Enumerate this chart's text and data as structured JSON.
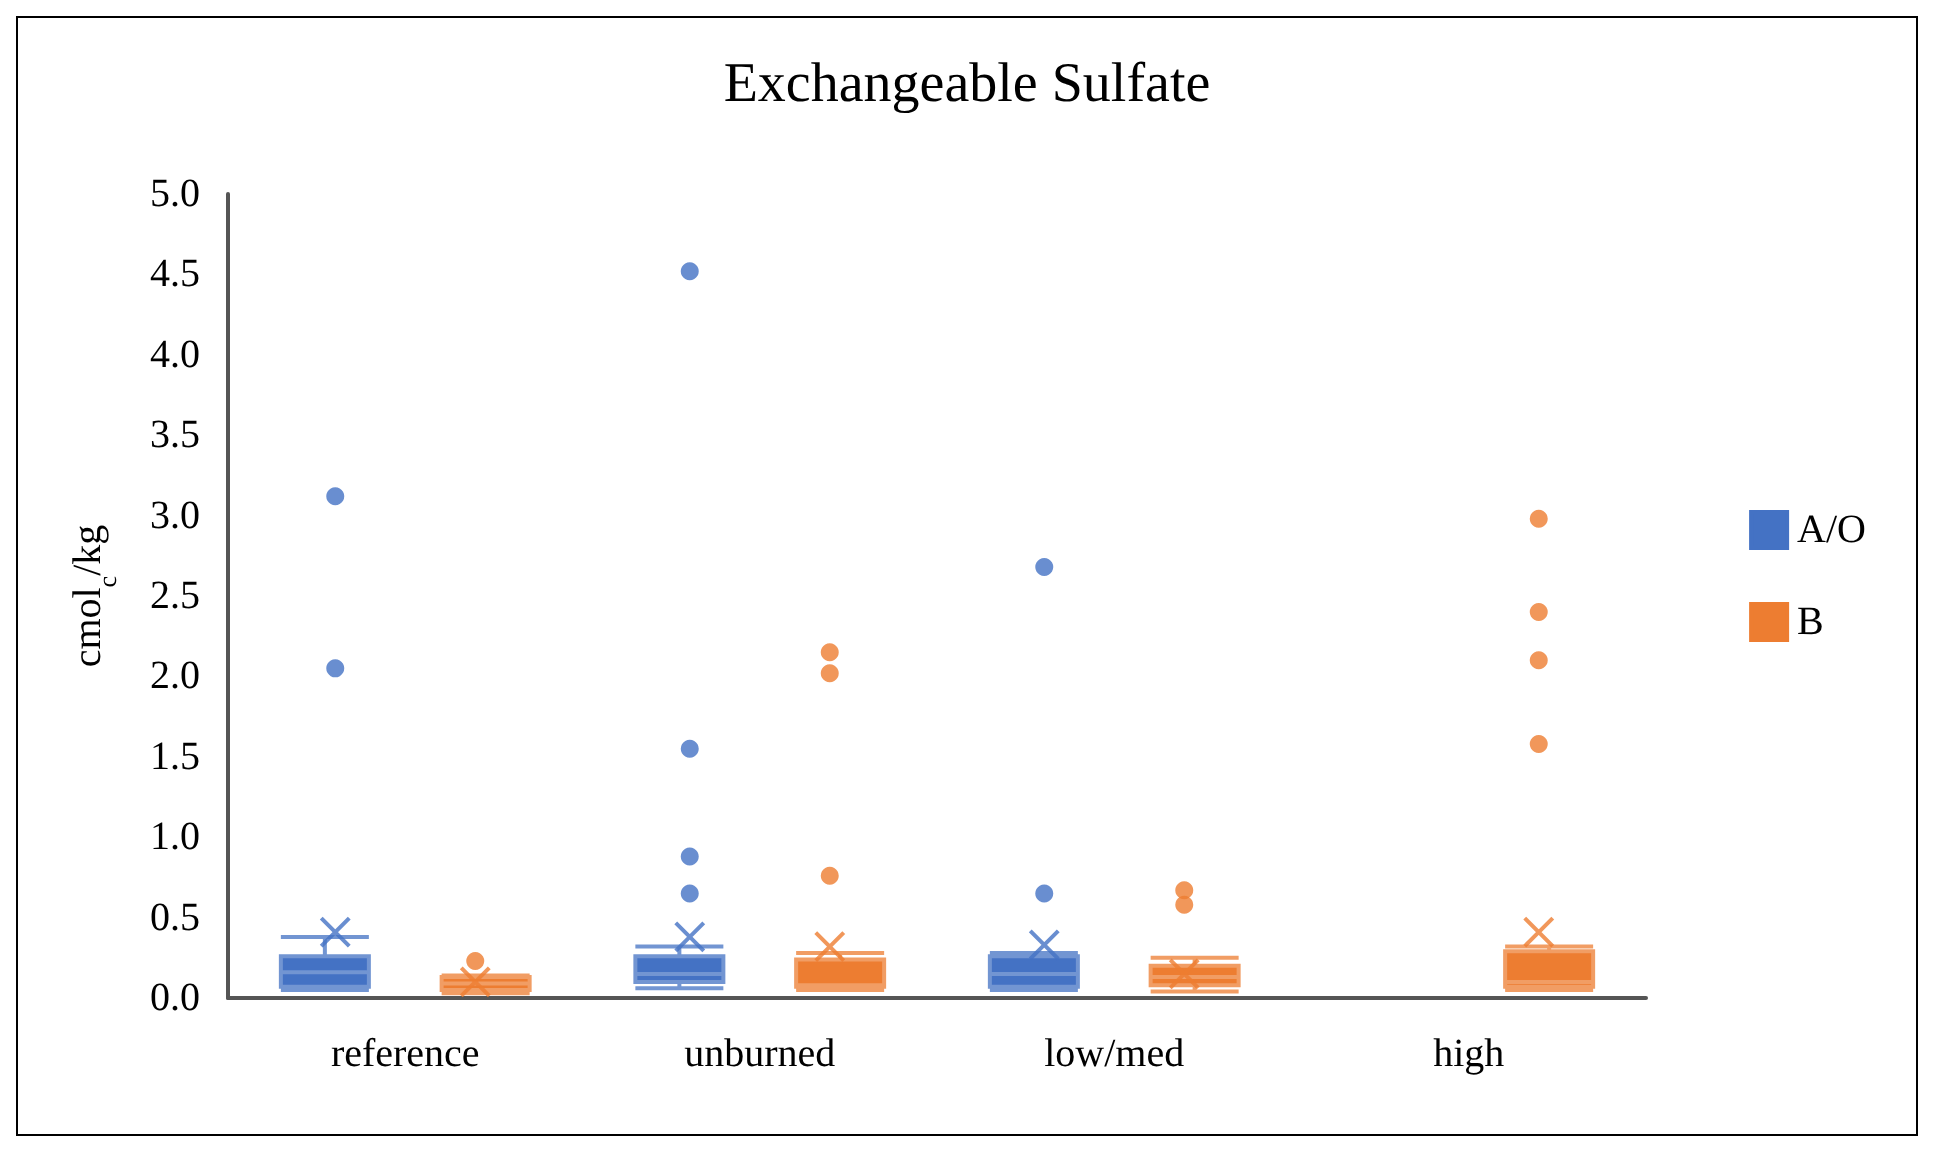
{
  "chart_data": {
    "type": "box",
    "title": "Exchangeable Sulfate",
    "ylabel": "cmol$_{c}$/kg",
    "categories": [
      "reference",
      "unburned",
      "low/med",
      "high"
    ],
    "ylim": [
      0,
      5
    ],
    "yticks": [
      {
        "value": 0,
        "label": "0.0"
      },
      {
        "value": 0.5,
        "label": "0.5"
      },
      {
        "value": 1,
        "label": "1.0"
      },
      {
        "value": 1.5,
        "label": "1.5"
      },
      {
        "value": 2,
        "label": "2.0"
      },
      {
        "value": 2.5,
        "label": "2.5"
      },
      {
        "value": 3,
        "label": "3.0"
      },
      {
        "value": 3.5,
        "label": "3.5"
      },
      {
        "value": 4,
        "label": "4.0"
      },
      {
        "value": 4.5,
        "label": "4.5"
      },
      {
        "value": 5,
        "label": "5.0"
      }
    ],
    "grid": false,
    "legend": "right",
    "series": [
      {
        "name": "A/O",
        "color": "#4472c4",
        "boxes": [
          {
            "low": 0.05,
            "q1": 0.07,
            "median": 0.16,
            "q3": 0.26,
            "high": 0.38,
            "mean": 0.41,
            "outliers": [
              3.12,
              2.05
            ]
          },
          {
            "low": 0.06,
            "q1": 0.1,
            "median": 0.15,
            "q3": 0.26,
            "high": 0.32,
            "mean": 0.38,
            "outliers": [
              4.52,
              1.55,
              0.88,
              0.65
            ]
          },
          {
            "low": 0.05,
            "q1": 0.07,
            "median": 0.15,
            "q3": 0.26,
            "high": 0.28,
            "mean": 0.33,
            "outliers": [
              2.68,
              0.65
            ]
          },
          null
        ]
      },
      {
        "name": "B",
        "color": "#ed7d31",
        "boxes": [
          {
            "low": 0.03,
            "q1": 0.05,
            "median": 0.09,
            "q3": 0.13,
            "high": 0.14,
            "mean": 0.1,
            "outliers": [
              0.23
            ]
          },
          {
            "low": 0.05,
            "q1": 0.07,
            "median": 0.08,
            "q3": 0.24,
            "high": 0.28,
            "mean": 0.32,
            "outliers": [
              2.15,
              2.02,
              0.76
            ]
          },
          {
            "low": 0.04,
            "q1": 0.08,
            "median": 0.13,
            "q3": 0.2,
            "high": 0.25,
            "mean": 0.15,
            "outliers": [
              0.67,
              0.58
            ]
          },
          {
            "low": 0.05,
            "q1": 0.07,
            "median": 0.1,
            "q3": 0.29,
            "high": 0.32,
            "mean": 0.41,
            "outliers": [
              2.98,
              2.4,
              2.1,
              1.58
            ]
          }
        ]
      }
    ]
  }
}
